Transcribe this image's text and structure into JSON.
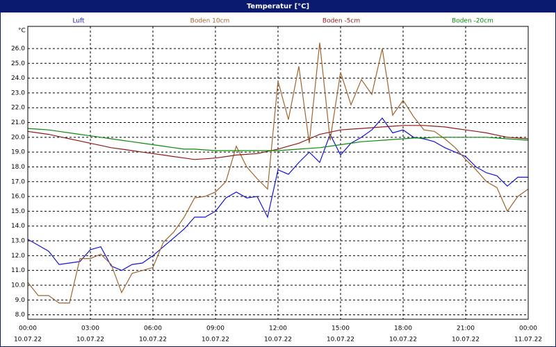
{
  "chart_data": {
    "type": "line",
    "title": "Temperatur [°C]",
    "y_label": "°C",
    "x": [
      0,
      0.5,
      1,
      1.5,
      2,
      2.5,
      3,
      3.5,
      4,
      4.5,
      5,
      5.5,
      6,
      6.5,
      7,
      7.5,
      8,
      8.5,
      9,
      9.5,
      10,
      10.5,
      11,
      11.5,
      12,
      12.5,
      13,
      13.5,
      14,
      14.5,
      15,
      15.5,
      16,
      16.5,
      17,
      17.5,
      18,
      18.5,
      19,
      19.5,
      20,
      20.5,
      21,
      21.5,
      22,
      22.5,
      23,
      23.5,
      24
    ],
    "series": [
      {
        "name": "Luft",
        "color": "#1414d2",
        "values": [
          13.1,
          12.7,
          12.3,
          11.4,
          11.5,
          11.6,
          12.4,
          12.6,
          11.3,
          11.0,
          11.4,
          11.5,
          12.0,
          12.6,
          13.2,
          13.8,
          14.6,
          14.6,
          15.0,
          15.9,
          16.3,
          15.9,
          16.0,
          14.6,
          17.8,
          17.5,
          18.3,
          19.0,
          18.3,
          20.2,
          18.8,
          19.6,
          20.0,
          20.5,
          21.3,
          20.3,
          20.5,
          20.0,
          19.9,
          19.7,
          19.3,
          19.0,
          18.7,
          18.0,
          17.6,
          17.4,
          16.7,
          17.3,
          17.3
        ]
      },
      {
        "name": "Boden 10cm",
        "color": "#a0642d",
        "values": [
          10.2,
          9.3,
          9.3,
          8.8,
          8.8,
          11.8,
          11.8,
          12.1,
          11.4,
          9.5,
          10.8,
          11.0,
          11.2,
          12.9,
          13.6,
          14.6,
          15.9,
          16.0,
          16.3,
          17.0,
          19.4,
          18.0,
          17.2,
          16.5,
          23.8,
          21.2,
          24.8,
          19.6,
          26.4,
          19.8,
          24.4,
          22.2,
          23.9,
          22.9,
          26.0,
          21.5,
          22.5,
          21.4,
          20.5,
          20.4,
          19.9,
          19.3,
          18.5,
          17.8,
          17.0,
          16.6,
          15.0,
          16.0,
          16.5
        ]
      },
      {
        "name": "Boden -5cm",
        "color": "#8b1a1a",
        "values": [
          20.4,
          20.3,
          20.2,
          20.05,
          19.9,
          19.75,
          19.6,
          19.45,
          19.3,
          19.2,
          19.1,
          19.0,
          18.9,
          18.8,
          18.7,
          18.6,
          18.5,
          18.55,
          18.6,
          18.7,
          18.8,
          18.85,
          18.9,
          19.05,
          19.2,
          19.4,
          19.6,
          19.9,
          20.2,
          20.35,
          20.5,
          20.55,
          20.6,
          20.65,
          20.7,
          20.75,
          20.8,
          20.8,
          20.8,
          20.75,
          20.7,
          20.6,
          20.5,
          20.4,
          20.3,
          20.15,
          20.0,
          19.95,
          19.9
        ]
      },
      {
        "name": "Boden -20cm",
        "color": "#0a8a0a",
        "values": [
          20.6,
          20.55,
          20.5,
          20.4,
          20.3,
          20.2,
          20.1,
          20.0,
          19.9,
          19.8,
          19.7,
          19.6,
          19.5,
          19.4,
          19.3,
          19.2,
          19.2,
          19.15,
          19.1,
          19.1,
          19.1,
          19.1,
          19.1,
          19.1,
          19.1,
          19.15,
          19.2,
          19.25,
          19.3,
          19.4,
          19.5,
          19.6,
          19.7,
          19.75,
          19.8,
          19.85,
          19.9,
          19.95,
          19.95,
          20.0,
          20.0,
          20.0,
          20.0,
          20.0,
          20.0,
          19.95,
          19.9,
          19.85,
          19.8
        ]
      }
    ],
    "xlim": [
      0,
      24
    ],
    "xticks": [
      {
        "value": 0,
        "label": "00:00",
        "date": "10.07.22"
      },
      {
        "value": 3,
        "label": "03:00",
        "date": "10.07.22"
      },
      {
        "value": 6,
        "label": "06:00",
        "date": "10.07.22"
      },
      {
        "value": 9,
        "label": "09:00",
        "date": "10.07.22"
      },
      {
        "value": 12,
        "label": "12:00",
        "date": "10.07.22"
      },
      {
        "value": 15,
        "label": "15:00",
        "date": "10.07.22"
      },
      {
        "value": 18,
        "label": "18:00",
        "date": "10.07.22"
      },
      {
        "value": 21,
        "label": "21:00",
        "date": "10.07.22"
      },
      {
        "value": 24,
        "label": "00:00",
        "date": "11.07.22"
      }
    ],
    "ylim": [
      7.7,
      27.5
    ],
    "yticks": [
      {
        "value": 8,
        "label": "8.0"
      },
      {
        "value": 9,
        "label": "9.0"
      },
      {
        "value": 10,
        "label": "10.0"
      },
      {
        "value": 11,
        "label": "11.0"
      },
      {
        "value": 12,
        "label": "12.0"
      },
      {
        "value": 13,
        "label": "13.0"
      },
      {
        "value": 14,
        "label": "14.0"
      },
      {
        "value": 15,
        "label": "15.0"
      },
      {
        "value": 16,
        "label": "16.0"
      },
      {
        "value": 17,
        "label": "17.0"
      },
      {
        "value": 18,
        "label": "18.0"
      },
      {
        "value": 19,
        "label": "19.0"
      },
      {
        "value": 20,
        "label": "20.0"
      },
      {
        "value": 21,
        "label": "21.0"
      },
      {
        "value": 22,
        "label": "22.0"
      },
      {
        "value": 23,
        "label": "23.0"
      },
      {
        "value": 24,
        "label": "24.0"
      },
      {
        "value": 25,
        "label": "25.0"
      },
      {
        "value": 26,
        "label": "26.0"
      }
    ],
    "grid": true
  }
}
